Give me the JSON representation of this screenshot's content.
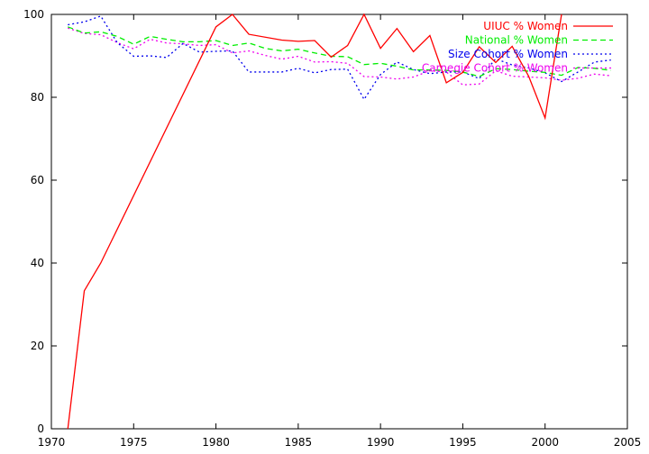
{
  "chart_data": {
    "type": "line",
    "title": "",
    "xlabel": "",
    "ylabel": "",
    "xlim": [
      1970,
      2005
    ],
    "ylim": [
      0,
      100
    ],
    "xticks": [
      1970,
      1975,
      1980,
      1985,
      1990,
      1995,
      2000,
      2005
    ],
    "yticks": [
      0,
      20,
      40,
      60,
      80,
      100
    ],
    "grid": false,
    "legend_position": "top-right",
    "series": [
      {
        "name": "UIUC % Women",
        "color": "#ff0000",
        "dash": "solid",
        "x": [
          1971,
          1972,
          1973,
          1980,
          1981,
          1982,
          1984,
          1985,
          1986,
          1987,
          1988,
          1989,
          1990,
          1991,
          1992,
          1993,
          1994,
          1995,
          1996,
          1997,
          1998,
          1999,
          2000,
          2001
        ],
        "y": [
          0,
          33.3,
          40,
          97,
          100,
          95.2,
          93.8,
          93.5,
          93.7,
          89.7,
          92.5,
          100,
          91.8,
          96.6,
          91,
          94.9,
          83.5,
          86,
          92.2,
          88.4,
          92.3,
          85.1,
          75,
          100
        ]
      },
      {
        "name": "National % Women",
        "color": "#00ee00",
        "dash": "dashed",
        "x": [
          1971,
          1972,
          1973,
          1974,
          1975,
          1976,
          1977,
          1978,
          1979,
          1980,
          1981,
          1982,
          1983,
          1984,
          1985,
          1986,
          1987,
          1988,
          1989,
          1990,
          1991,
          1992,
          1993,
          1994,
          1995,
          1996,
          1997,
          1998,
          1999,
          2000,
          2001,
          2002,
          2003,
          2004
        ],
        "y": [
          97,
          95.5,
          95.8,
          94.7,
          92.8,
          94.7,
          94,
          93.4,
          93.4,
          93.7,
          92.5,
          93.1,
          91.8,
          91.2,
          91.6,
          90.7,
          89.9,
          89.8,
          87.9,
          88.2,
          87.5,
          86.6,
          86.6,
          86.5,
          86.1,
          85,
          86.9,
          86.7,
          86.3,
          86,
          85.3,
          87.2,
          87,
          86.5
        ]
      },
      {
        "name": "Size Cohort % Women",
        "color": "#0000ee",
        "dash": "dotted",
        "x": [
          1971,
          1972,
          1973,
          1974,
          1975,
          1976,
          1977,
          1978,
          1979,
          1980,
          1981,
          1982,
          1983,
          1984,
          1985,
          1986,
          1987,
          1988,
          1989,
          1990,
          1991,
          1992,
          1993,
          1994,
          1995,
          1996,
          1997,
          1998,
          1999,
          2000,
          2001,
          2002,
          2003,
          2004
        ],
        "y": [
          97.5,
          98.2,
          99.6,
          93.2,
          89.9,
          90,
          89.6,
          93,
          90.9,
          91.1,
          91.2,
          86.1,
          86.1,
          86.1,
          87,
          85.9,
          86.7,
          86.8,
          79.5,
          85.5,
          88.5,
          86.7,
          85.7,
          86.1,
          86.1,
          84.5,
          89.3,
          87.8,
          87.1,
          85.9,
          83.8,
          86.1,
          88.5,
          89
        ]
      },
      {
        "name": "Carnegie Cohort % Women",
        "color": "#ee00ee",
        "dash": "dotted",
        "x": [
          1971,
          1972,
          1973,
          1974,
          1975,
          1976,
          1977,
          1978,
          1979,
          1980,
          1981,
          1982,
          1983,
          1984,
          1985,
          1986,
          1987,
          1988,
          1989,
          1990,
          1991,
          1992,
          1993,
          1994,
          1995,
          1996,
          1997,
          1998,
          1999,
          2000,
          2001,
          2002,
          2003,
          2004
        ],
        "y": [
          96.7,
          95.4,
          95.1,
          93.2,
          91.7,
          94,
          93.1,
          92.9,
          92.5,
          92.7,
          90.7,
          91.2,
          90.1,
          89.2,
          89.9,
          88.5,
          88.6,
          88.2,
          85,
          84.9,
          84.4,
          84.9,
          86.4,
          86.1,
          83,
          83.2,
          86.4,
          85.1,
          84.9,
          84.7,
          84.1,
          84.6,
          85.6,
          85.2
        ]
      }
    ]
  }
}
